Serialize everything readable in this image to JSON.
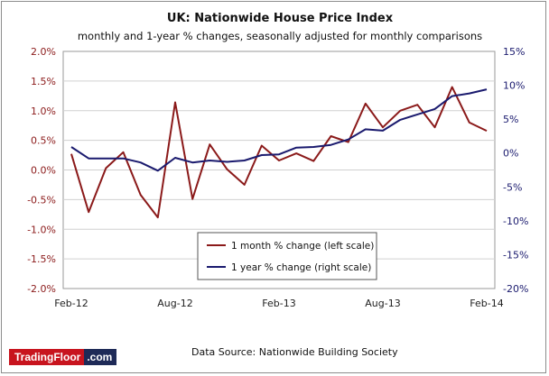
{
  "chart_data": {
    "type": "line",
    "title": "UK: Nationwide House Price Index",
    "subtitle": "monthly and 1-year % changes, seasonally adjusted for monthly comparisons",
    "x_tick_labels": [
      "Feb-12",
      "Aug-12",
      "Feb-13",
      "Aug-13",
      "Feb-14"
    ],
    "x": [
      "Feb-12",
      "Mar-12",
      "Apr-12",
      "May-12",
      "Jun-12",
      "Jul-12",
      "Aug-12",
      "Sep-12",
      "Oct-12",
      "Nov-12",
      "Dec-12",
      "Jan-13",
      "Feb-13",
      "Mar-13",
      "Apr-13",
      "May-13",
      "Jun-13",
      "Jul-13",
      "Aug-13",
      "Sep-13",
      "Oct-13",
      "Nov-13",
      "Dec-13",
      "Jan-14",
      "Feb-14"
    ],
    "left_axis": {
      "ylim": [
        -2.0,
        2.0
      ],
      "ticks": [
        "2.0%",
        "1.5%",
        "1.0%",
        "0.5%",
        "0.0%",
        "-0.5%",
        "-1.0%",
        "-1.5%",
        "-2.0%"
      ]
    },
    "right_axis": {
      "ylim": [
        -20,
        15
      ],
      "ticks": [
        "15%",
        "10%",
        "5%",
        "0%",
        "-5%",
        "-10%",
        "-15%",
        "-20%"
      ]
    },
    "series": [
      {
        "name": "1 month % change (left scale)",
        "axis": "left",
        "color": "#8b1a1a",
        "values": [
          0.27,
          -0.71,
          0.03,
          0.3,
          -0.42,
          -0.8,
          1.14,
          -0.49,
          0.43,
          0.01,
          -0.25,
          0.41,
          0.16,
          0.28,
          0.15,
          0.57,
          0.47,
          1.12,
          0.72,
          1.0,
          1.1,
          0.72,
          1.4,
          0.8,
          0.66
        ]
      },
      {
        "name": "1 year % change (right scale)",
        "axis": "right",
        "color": "#1a1a6e",
        "values": [
          0.9,
          -0.8,
          -0.8,
          -0.8,
          -1.4,
          -2.6,
          -0.7,
          -1.4,
          -1.1,
          -1.3,
          -1.1,
          -0.3,
          -0.2,
          0.8,
          0.9,
          1.2,
          2.0,
          3.5,
          3.3,
          4.9,
          5.7,
          6.5,
          8.4,
          8.8,
          9.4
        ]
      }
    ],
    "legend_position": "lower-center"
  },
  "footer": {
    "logo_name": "TradingFloor",
    "logo_tld": ".com",
    "source": "Data Source: Nationwide Building Society"
  }
}
